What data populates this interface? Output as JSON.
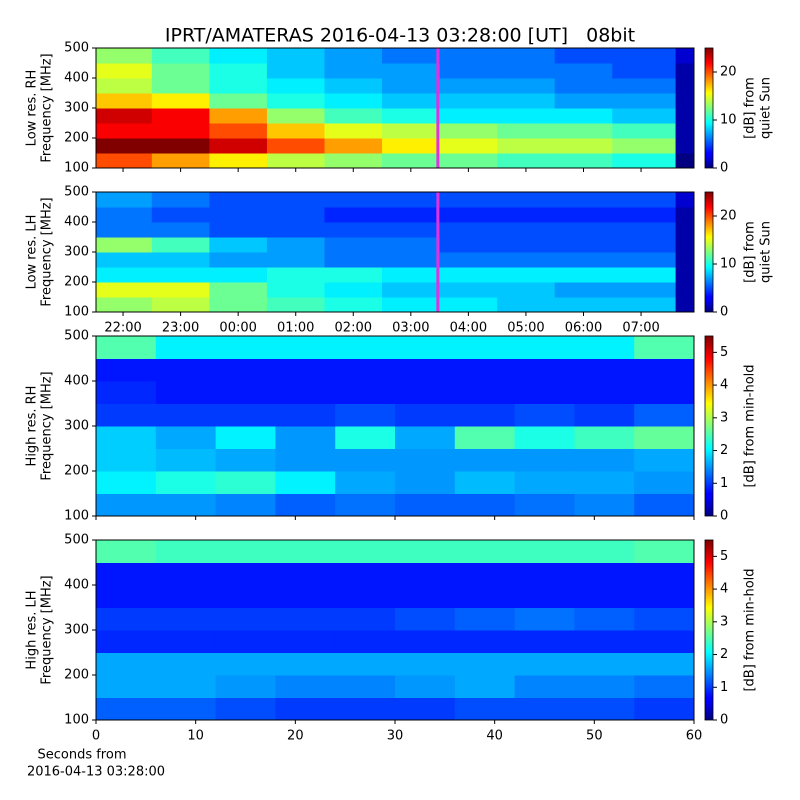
{
  "title": "IPRT/AMATERAS 2016-04-13 03:28:00 [UT]   08bit",
  "chart_data": [
    {
      "type": "heatmap",
      "colormap": "jet",
      "ylabel": [
        "Low res. RH",
        "Frequency [MHz]"
      ],
      "colorbar_label": [
        "[dB] from",
        "quiet Sun"
      ],
      "x": [
        21.53,
        22.5,
        23.5,
        24.5,
        25.5,
        26.5,
        27.5,
        28.5,
        29.5,
        30.5,
        31.6,
        31.92
      ],
      "y": [
        100,
        150,
        200,
        250,
        300,
        350,
        400,
        450,
        500
      ],
      "z": [
        [
          20,
          18,
          16,
          14,
          13,
          12,
          12,
          11,
          11,
          10,
          0
        ],
        [
          25,
          25,
          23,
          20,
          18,
          16,
          15,
          14,
          14,
          13,
          1
        ],
        [
          22,
          22,
          20,
          17,
          15,
          14,
          13,
          12,
          12,
          11,
          1
        ],
        [
          23,
          22,
          18,
          13,
          11,
          10,
          9,
          9,
          9,
          8,
          1
        ],
        [
          17,
          16,
          12,
          10,
          9,
          8,
          8,
          8,
          7,
          7,
          1
        ],
        [
          14,
          12,
          10,
          9,
          8,
          7,
          7,
          7,
          6,
          6,
          1
        ],
        [
          15,
          12,
          10,
          8,
          7,
          7,
          6,
          6,
          6,
          5,
          1
        ],
        [
          13,
          11,
          9,
          8,
          7,
          6,
          6,
          6,
          5,
          5,
          2
        ]
      ],
      "xlim": [
        21.53,
        31.92
      ],
      "xticks": [
        22,
        23,
        24,
        25,
        26,
        27,
        28,
        29,
        30,
        31
      ],
      "ylim": [
        100,
        500
      ],
      "yticks": [
        100,
        200,
        300,
        400,
        500
      ],
      "zlim": [
        0,
        25
      ],
      "zticks": [
        0,
        10,
        20
      ],
      "marker_x": 27.47,
      "marker_color": "#e030e0"
    },
    {
      "type": "heatmap",
      "colormap": "jet",
      "ylabel": [
        "Low res. LH",
        "Frequency [MHz]"
      ],
      "colorbar_label": [
        "[dB] from",
        "quiet Sun"
      ],
      "x": [
        21.53,
        22.5,
        23.5,
        24.5,
        25.5,
        26.5,
        27.5,
        28.5,
        29.5,
        30.5,
        31.6,
        31.92
      ],
      "y": [
        100,
        150,
        200,
        250,
        300,
        350,
        400,
        450,
        500
      ],
      "z": [
        [
          13,
          14,
          12,
          11,
          10,
          9,
          9,
          8,
          8,
          8,
          1
        ],
        [
          15,
          15,
          12,
          10,
          9,
          8,
          8,
          8,
          7,
          7,
          1
        ],
        [
          9,
          9,
          9,
          10,
          10,
          9,
          9,
          9,
          9,
          9,
          1
        ],
        [
          8,
          8,
          7,
          7,
          6,
          6,
          6,
          6,
          6,
          6,
          1
        ],
        [
          13,
          11,
          8,
          7,
          6,
          6,
          5,
          5,
          5,
          5,
          1
        ],
        [
          6,
          6,
          5,
          5,
          5,
          5,
          5,
          5,
          5,
          5,
          1
        ],
        [
          6,
          5,
          5,
          5,
          4,
          4,
          4,
          4,
          4,
          4,
          1
        ],
        [
          7,
          6,
          5,
          5,
          5,
          5,
          5,
          5,
          5,
          5,
          2
        ]
      ],
      "xlim": [
        21.53,
        31.92
      ],
      "xticks": [
        {
          "value": 22,
          "label": "22:00"
        },
        {
          "value": 23,
          "label": "23:00"
        },
        {
          "value": 24,
          "label": "00:00"
        },
        {
          "value": 25,
          "label": "01:00"
        },
        {
          "value": 26,
          "label": "02:00"
        },
        {
          "value": 27,
          "label": "03:00"
        },
        {
          "value": 28,
          "label": "04:00"
        },
        {
          "value": 29,
          "label": "05:00"
        },
        {
          "value": 30,
          "label": "06:00"
        },
        {
          "value": 31,
          "label": "07:00"
        }
      ],
      "ylim": [
        100,
        500
      ],
      "yticks": [
        100,
        200,
        300,
        400,
        500
      ],
      "zlim": [
        0,
        25
      ],
      "zticks": [
        0,
        10,
        20
      ],
      "marker_x": 27.47,
      "marker_color": "#e030e0"
    },
    {
      "type": "heatmap",
      "colormap": "jet",
      "ylabel": [
        "High res. RH",
        "Frequency [MHz]"
      ],
      "colorbar_label": [
        "[dB] from min-hold"
      ],
      "x": [
        0,
        6,
        12,
        18,
        24,
        30,
        36,
        42,
        48,
        54,
        60
      ],
      "y": [
        100,
        150,
        200,
        250,
        300,
        350,
        400,
        450,
        500
      ],
      "z": [
        [
          1.5,
          1.5,
          1.4,
          1.2,
          1.3,
          1.2,
          1.2,
          1.3,
          1.4,
          1.2
        ],
        [
          2.0,
          2.2,
          2.3,
          2.0,
          1.6,
          1.5,
          1.7,
          1.6,
          1.6,
          1.5
        ],
        [
          1.8,
          1.7,
          1.6,
          1.5,
          1.5,
          1.5,
          1.5,
          1.5,
          1.5,
          1.6
        ],
        [
          1.8,
          1.6,
          2.0,
          1.5,
          2.2,
          1.6,
          2.5,
          2.2,
          2.4,
          2.6
        ],
        [
          1.0,
          1.0,
          1.0,
          1.0,
          1.1,
          1.0,
          1.0,
          1.1,
          1.0,
          1.2
        ],
        [
          0.9,
          0.8,
          0.8,
          0.8,
          0.8,
          0.8,
          0.8,
          0.8,
          0.8,
          0.8
        ],
        [
          0.8,
          0.8,
          0.8,
          0.8,
          0.8,
          0.8,
          0.8,
          0.8,
          0.8,
          0.8
        ],
        [
          2.5,
          2.0,
          2.0,
          2.0,
          2.0,
          2.0,
          2.0,
          2.0,
          2.0,
          2.5
        ]
      ],
      "xlim": [
        0,
        60
      ],
      "xticks": [
        0,
        10,
        20,
        30,
        40,
        50,
        60
      ],
      "ylim": [
        100,
        500
      ],
      "yticks": [
        100,
        200,
        300,
        400,
        500
      ],
      "zlim": [
        0,
        5.5
      ],
      "zticks": [
        0,
        1,
        2,
        3,
        4,
        5
      ]
    },
    {
      "type": "heatmap",
      "colormap": "jet",
      "ylabel": [
        "High res. LH",
        "Frequency [MHz]"
      ],
      "colorbar_label": [
        "[dB] from min-hold"
      ],
      "xlabel": [
        "Seconds from",
        "2016-04-13 03:28:00"
      ],
      "x": [
        0,
        6,
        12,
        18,
        24,
        30,
        36,
        42,
        48,
        54,
        60
      ],
      "y": [
        100,
        150,
        200,
        250,
        300,
        350,
        400,
        450,
        500
      ],
      "z": [
        [
          1.2,
          1.2,
          1.1,
          1.0,
          1.0,
          1.0,
          1.1,
          1.1,
          1.1,
          1.0
        ],
        [
          1.6,
          1.6,
          1.5,
          1.4,
          1.4,
          1.5,
          1.6,
          1.4,
          1.4,
          1.3
        ],
        [
          1.6,
          1.6,
          1.6,
          1.6,
          1.6,
          1.6,
          1.6,
          1.6,
          1.6,
          1.6
        ],
        [
          0.9,
          0.9,
          0.9,
          0.9,
          0.9,
          0.9,
          0.9,
          0.9,
          0.9,
          0.9
        ],
        [
          1.0,
          1.0,
          1.0,
          1.0,
          1.0,
          1.1,
          1.2,
          1.3,
          1.2,
          1.1
        ],
        [
          0.8,
          0.8,
          0.8,
          0.8,
          0.8,
          0.8,
          0.8,
          0.8,
          0.8,
          0.8
        ],
        [
          0.8,
          0.8,
          0.8,
          0.8,
          0.8,
          0.8,
          0.8,
          0.8,
          0.8,
          0.8
        ],
        [
          2.5,
          2.4,
          2.4,
          2.4,
          2.4,
          2.4,
          2.4,
          2.4,
          2.4,
          2.5
        ]
      ],
      "xlim": [
        0,
        60
      ],
      "xticks": [
        0,
        10,
        20,
        30,
        40,
        50,
        60
      ],
      "ylim": [
        100,
        500
      ],
      "yticks": [
        100,
        200,
        300,
        400,
        500
      ],
      "zlim": [
        0,
        5.5
      ],
      "zticks": [
        0,
        1,
        2,
        3,
        4,
        5
      ]
    }
  ]
}
